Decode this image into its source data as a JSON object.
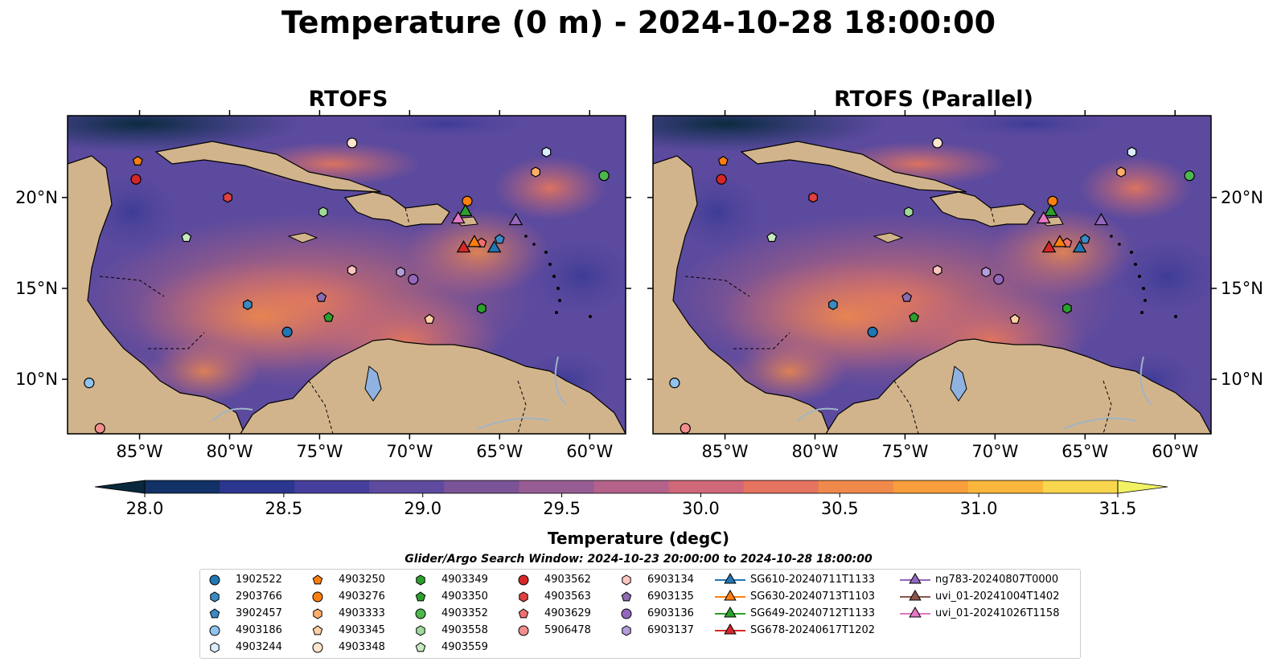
{
  "title": "Temperature (0 m) - 2024-10-28 18:00:00",
  "maps": [
    {
      "title": "RTOFS"
    },
    {
      "title": "RTOFS (Parallel)"
    }
  ],
  "axes": {
    "lon_ticks": [
      "85°W",
      "80°W",
      "75°W",
      "70°W",
      "65°W",
      "60°W"
    ],
    "lat_ticks": [
      "20°N",
      "15°N",
      "10°N"
    ],
    "lon_values": [
      -85,
      -80,
      -75,
      -70,
      -65,
      -60
    ],
    "lat_values": [
      20,
      15,
      10
    ],
    "lon_range": [
      -89,
      -58
    ],
    "lat_range": [
      7,
      24.5
    ]
  },
  "colorbar": {
    "label": "Temperature (degC)",
    "ticks": [
      "28.0",
      "28.5",
      "29.0",
      "29.5",
      "30.0",
      "30.5",
      "31.0",
      "31.5"
    ],
    "range": [
      28.0,
      31.5
    ],
    "colors": [
      "#09283b",
      "#123166",
      "#2a3690",
      "#463e9c",
      "#5e4b9f",
      "#7b5397",
      "#975c92",
      "#b4628a",
      "#cf6879",
      "#e4735f",
      "#f08a4a",
      "#f89e3d",
      "#fbb73c",
      "#f8d64e",
      "#f0f163"
    ]
  },
  "search_window": "Glider/Argo Search Window: 2024-10-23 20:00:00 to 2024-10-28 18:00:00",
  "chart_data": {
    "type": "scatter",
    "title": "Temperature (0 m) - 2024-10-28 18:00:00",
    "panels": [
      "RTOFS",
      "RTOFS (Parallel)"
    ],
    "x_label": "",
    "y_label": "",
    "xlim": [
      -89,
      -58
    ],
    "ylim": [
      7,
      24.5
    ],
    "grid": false,
    "legend_placement": "bottom",
    "series": [
      {
        "name": "1902522",
        "marker": "circle",
        "color": "#1f77b4",
        "x": [
          -76.8
        ],
        "y": [
          12.6
        ]
      },
      {
        "name": "2903766",
        "marker": "hexagon",
        "color": "#3a8ac4",
        "x": [
          -79.0
        ],
        "y": [
          14.1
        ]
      },
      {
        "name": "3902457",
        "marker": "pentagon",
        "color": "#3a8ac4",
        "x": [
          -65.0
        ],
        "y": [
          17.7
        ]
      },
      {
        "name": "4903186",
        "marker": "circle",
        "color": "#90c3ee",
        "x": [
          -87.8
        ],
        "y": [
          9.8
        ]
      },
      {
        "name": "4903244",
        "marker": "hexagon",
        "color": "#dbeeff",
        "x": [
          -62.4
        ],
        "y": [
          22.5
        ]
      },
      {
        "name": "4903250",
        "marker": "pentagon",
        "color": "#ff7f0e",
        "x": [
          -85.1
        ],
        "y": [
          22.0
        ]
      },
      {
        "name": "4903276",
        "marker": "circle",
        "color": "#ff7f0e",
        "x": [
          -66.8
        ],
        "y": [
          19.8
        ]
      },
      {
        "name": "4903333",
        "marker": "hexagon",
        "color": "#fdae6b",
        "x": [
          -63.0
        ],
        "y": [
          21.4
        ]
      },
      {
        "name": "4903345",
        "marker": "pentagon",
        "color": "#fdd0a2",
        "x": [
          -68.9
        ],
        "y": [
          13.3
        ]
      },
      {
        "name": "4903348",
        "marker": "circle",
        "color": "#fee6ce",
        "x": [
          -73.2
        ],
        "y": [
          23.0
        ]
      },
      {
        "name": "4903349",
        "marker": "hexagon",
        "color": "#2ca02c",
        "x": [
          -66.0
        ],
        "y": [
          13.9
        ]
      },
      {
        "name": "4903350",
        "marker": "pentagon",
        "color": "#2ca02c",
        "x": [
          -74.5
        ],
        "y": [
          13.4
        ]
      },
      {
        "name": "4903352",
        "marker": "circle",
        "color": "#4db84d",
        "x": [
          -59.2
        ],
        "y": [
          21.2
        ]
      },
      {
        "name": "4903558",
        "marker": "hexagon",
        "color": "#a1d99b",
        "x": [
          -74.8
        ],
        "y": [
          19.2
        ]
      },
      {
        "name": "4903559",
        "marker": "pentagon",
        "color": "#c7e9c0",
        "x": [
          -82.4
        ],
        "y": [
          17.8
        ]
      },
      {
        "name": "4903562",
        "marker": "circle",
        "color": "#d62728",
        "x": [
          -85.2
        ],
        "y": [
          21.0
        ]
      },
      {
        "name": "4903563",
        "marker": "hexagon",
        "color": "#e04040",
        "x": [
          -80.1
        ],
        "y": [
          20.0
        ]
      },
      {
        "name": "4903629",
        "marker": "pentagon",
        "color": "#f07070",
        "x": [
          -66.0
        ],
        "y": [
          17.5
        ]
      },
      {
        "name": "5906478",
        "marker": "circle",
        "color": "#f28e8e",
        "x": [
          -87.2
        ],
        "y": [
          7.3
        ]
      },
      {
        "name": "6903134",
        "marker": "hexagon",
        "color": "#fcc5c0",
        "x": [
          -73.2
        ],
        "y": [
          16.0
        ]
      },
      {
        "name": "6903135",
        "marker": "pentagon",
        "color": "#8c6bb1",
        "x": [
          -74.9
        ],
        "y": [
          14.5
        ]
      },
      {
        "name": "6903136",
        "marker": "circle",
        "color": "#9467bd",
        "x": [
          -69.8
        ],
        "y": [
          15.5
        ]
      },
      {
        "name": "6903137",
        "marker": "hexagon",
        "color": "#b39ddb",
        "x": [
          -70.5
        ],
        "y": [
          15.9
        ]
      },
      {
        "name": "SG610-20240711T1133",
        "marker": "triangle",
        "color": "#1f77b4",
        "x": [
          -65.3
        ],
        "y": [
          17.2
        ]
      },
      {
        "name": "SG630-20240713T1103",
        "marker": "triangle",
        "color": "#ff7f0e",
        "x": [
          -66.4
        ],
        "y": [
          17.5
        ]
      },
      {
        "name": "SG649-20240712T1133",
        "marker": "triangle",
        "color": "#2ca02c",
        "x": [
          -66.9
        ],
        "y": [
          19.2
        ]
      },
      {
        "name": "SG678-20240617T1202",
        "marker": "triangle",
        "color": "#d62728",
        "x": [
          -67.0
        ],
        "y": [
          17.2
        ]
      },
      {
        "name": "ng783-20240807T0000",
        "marker": "triangle",
        "color": "#9467bd",
        "x": [
          -64.1
        ],
        "y": [
          18.7
        ]
      },
      {
        "name": "uvi_01-20241004T1402",
        "marker": "triangle",
        "color": "#8c564b",
        "x": [],
        "y": []
      },
      {
        "name": "uvi_01-20241026T1158",
        "marker": "triangle",
        "color": "#e377c2",
        "x": [
          -67.3
        ],
        "y": [
          18.8
        ]
      }
    ]
  }
}
